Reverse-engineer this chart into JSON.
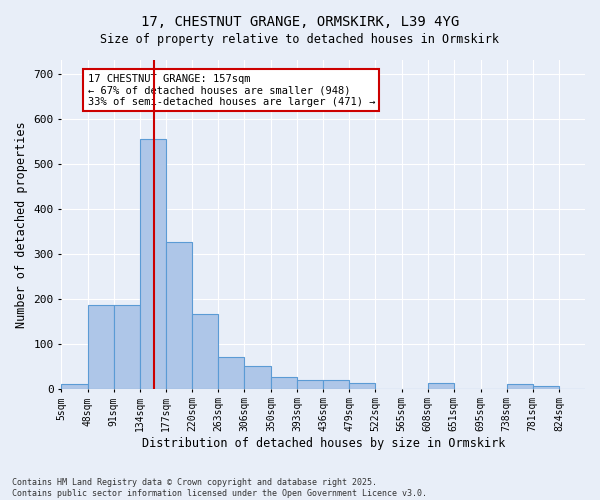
{
  "title_line1": "17, CHESTNUT GRANGE, ORMSKIRK, L39 4YG",
  "title_line2": "Size of property relative to detached houses in Ormskirk",
  "xlabel": "Distribution of detached houses by size in Ormskirk",
  "ylabel": "Number of detached properties",
  "bar_edges": [
    5,
    48,
    91,
    134,
    177,
    220,
    263,
    306,
    350,
    393,
    436,
    479,
    522,
    565,
    608,
    651,
    695,
    738,
    781,
    824,
    867
  ],
  "bar_heights": [
    10,
    185,
    185,
    555,
    325,
    165,
    70,
    50,
    25,
    20,
    20,
    13,
    0,
    0,
    12,
    0,
    0,
    10,
    5,
    0
  ],
  "bar_color": "#aec6e8",
  "bar_edge_color": "#5b9bd5",
  "vline_x": 157,
  "vline_color": "#cc0000",
  "annotation_text": "17 CHESTNUT GRANGE: 157sqm\n← 67% of detached houses are smaller (948)\n33% of semi-detached houses are larger (471) →",
  "annotation_box_color": "#cc0000",
  "ylim": [
    0,
    730
  ],
  "yticks": [
    0,
    100,
    200,
    300,
    400,
    500,
    600,
    700
  ],
  "background_color": "#e8eef8",
  "grid_color": "#ffffff",
  "footer_line1": "Contains HM Land Registry data © Crown copyright and database right 2025.",
  "footer_line2": "Contains public sector information licensed under the Open Government Licence v3.0."
}
